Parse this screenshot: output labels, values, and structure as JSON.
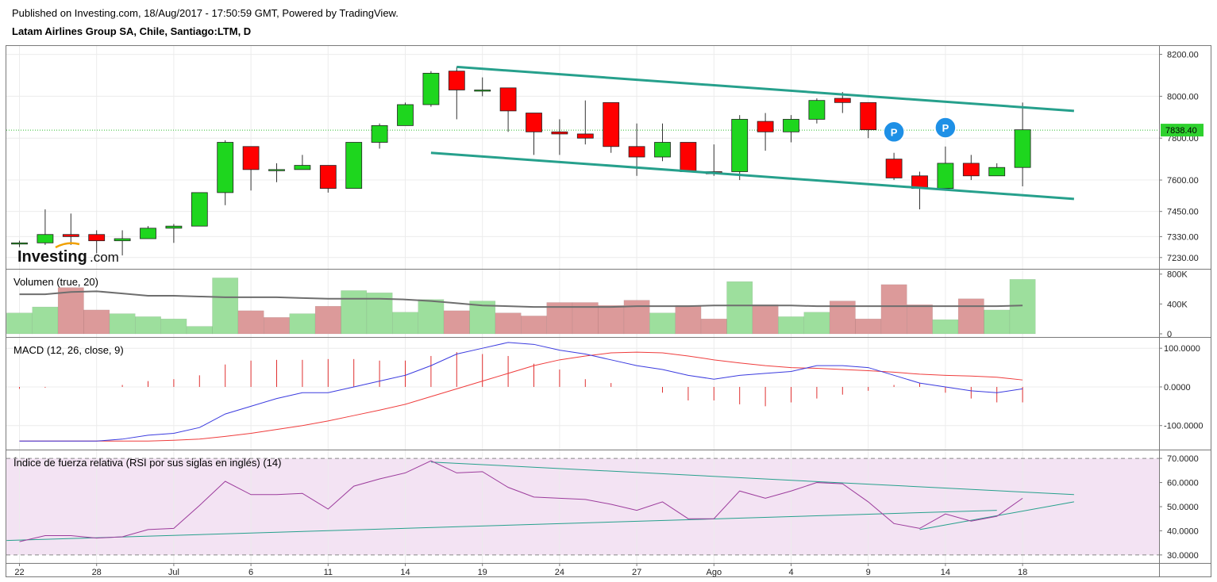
{
  "header": {
    "published": "Published on Investing.com, 18/Aug/2017 - 17:50:59 GMT, Powered by TradingView.",
    "symbol": "Latam Airlines Group SA, Chile, Santiago:LTM, D"
  },
  "logo": {
    "main": "Investing",
    "suffix": ".com"
  },
  "colors": {
    "up": "#1ed61e",
    "down": "#ff0000",
    "trend": "#26a08c",
    "vol_up": "#9ddf9d",
    "vol_down": "#dc9a9a",
    "vol_ma": "#6e6e6e",
    "macd": "#3b3bdf",
    "signal": "#ef3c3c",
    "hist": "#e03030",
    "rsi": "#9c3c9c",
    "rsi_band": "#f3e3f3",
    "last_bg": "#2ed12e"
  },
  "chart_data": [
    {
      "type": "candlestick",
      "title": "Latam Airlines Group SA, Chile, Santiago:LTM, D",
      "ylim": [
        7180,
        8240
      ],
      "y_ticks": [
        "8200.00",
        "8000.00",
        "7800.00",
        "7600.00",
        "7450.00",
        "7330.00",
        "7230.00"
      ],
      "last_price": 7838.4,
      "last_label": "7838.40",
      "x_tick_labels": [
        {
          "label": "22",
          "i": 0
        },
        {
          "label": "28",
          "i": 3
        },
        {
          "label": "Jul",
          "i": 6
        },
        {
          "label": "6",
          "i": 9
        },
        {
          "label": "11",
          "i": 12
        },
        {
          "label": "14",
          "i": 15
        },
        {
          "label": "19",
          "i": 18
        },
        {
          "label": "24",
          "i": 21
        },
        {
          "label": "27",
          "i": 24
        },
        {
          "label": "Ago",
          "i": 27
        },
        {
          "label": "4",
          "i": 30
        },
        {
          "label": "9",
          "i": 33
        },
        {
          "label": "14",
          "i": 36
        },
        {
          "label": "18",
          "i": 39
        }
      ],
      "candles": [
        {
          "o": 7300,
          "h": 7310,
          "l": 7280,
          "c": 7300
        },
        {
          "o": 7300,
          "h": 7460,
          "l": 7290,
          "c": 7340
        },
        {
          "o": 7340,
          "h": 7440,
          "l": 7290,
          "c": 7330
        },
        {
          "o": 7340,
          "h": 7360,
          "l": 7250,
          "c": 7310
        },
        {
          "o": 7310,
          "h": 7360,
          "l": 7240,
          "c": 7320
        },
        {
          "o": 7320,
          "h": 7380,
          "l": 7320,
          "c": 7370
        },
        {
          "o": 7370,
          "h": 7390,
          "l": 7300,
          "c": 7380
        },
        {
          "o": 7380,
          "h": 7540,
          "l": 7380,
          "c": 7540
        },
        {
          "o": 7540,
          "h": 7790,
          "l": 7480,
          "c": 7780
        },
        {
          "o": 7760,
          "h": 7760,
          "l": 7550,
          "c": 7650
        },
        {
          "o": 7650,
          "h": 7680,
          "l": 7590,
          "c": 7650
        },
        {
          "o": 7650,
          "h": 7720,
          "l": 7650,
          "c": 7670
        },
        {
          "o": 7670,
          "h": 7670,
          "l": 7540,
          "c": 7560
        },
        {
          "o": 7560,
          "h": 7780,
          "l": 7560,
          "c": 7780
        },
        {
          "o": 7780,
          "h": 7870,
          "l": 7750,
          "c": 7860
        },
        {
          "o": 7860,
          "h": 7970,
          "l": 7860,
          "c": 7960
        },
        {
          "o": 7960,
          "h": 8120,
          "l": 7950,
          "c": 8110
        },
        {
          "o": 8120,
          "h": 8140,
          "l": 7890,
          "c": 8030
        },
        {
          "o": 8030,
          "h": 8090,
          "l": 8000,
          "c": 8030
        },
        {
          "o": 8040,
          "h": 8040,
          "l": 7830,
          "c": 7930
        },
        {
          "o": 7920,
          "h": 7920,
          "l": 7720,
          "c": 7830
        },
        {
          "o": 7830,
          "h": 7890,
          "l": 7720,
          "c": 7820
        },
        {
          "o": 7820,
          "h": 7980,
          "l": 7770,
          "c": 7800
        },
        {
          "o": 7970,
          "h": 7970,
          "l": 7730,
          "c": 7760
        },
        {
          "o": 7760,
          "h": 7870,
          "l": 7620,
          "c": 7710
        },
        {
          "o": 7710,
          "h": 7870,
          "l": 7690,
          "c": 7780
        },
        {
          "o": 7780,
          "h": 7780,
          "l": 7640,
          "c": 7640
        },
        {
          "o": 7640,
          "h": 7770,
          "l": 7620,
          "c": 7630
        },
        {
          "o": 7640,
          "h": 7910,
          "l": 7600,
          "c": 7890
        },
        {
          "o": 7880,
          "h": 7920,
          "l": 7740,
          "c": 7830
        },
        {
          "o": 7830,
          "h": 7910,
          "l": 7780,
          "c": 7890
        },
        {
          "o": 7890,
          "h": 7990,
          "l": 7870,
          "c": 7980
        },
        {
          "o": 7990,
          "h": 8020,
          "l": 7920,
          "c": 7970
        },
        {
          "o": 7970,
          "h": 7970,
          "l": 7800,
          "c": 7840
        },
        {
          "o": 7700,
          "h": 7730,
          "l": 7600,
          "c": 7610
        },
        {
          "o": 7620,
          "h": 7640,
          "l": 7460,
          "c": 7560
        },
        {
          "o": 7560,
          "h": 7760,
          "l": 7560,
          "c": 7680
        },
        {
          "o": 7680,
          "h": 7720,
          "l": 7600,
          "c": 7620
        },
        {
          "o": 7620,
          "h": 7680,
          "l": 7620,
          "c": 7660
        },
        {
          "o": 7660,
          "h": 7970,
          "l": 7570,
          "c": 7840
        }
      ],
      "trendlines": [
        {
          "i1": 17,
          "v1": 8140,
          "i2": 41,
          "v2": 7930
        },
        {
          "i1": 16,
          "v1": 7730,
          "i2": 41,
          "v2": 7510
        }
      ],
      "markers": [
        {
          "label": "P",
          "i": 34,
          "v": 7830
        },
        {
          "label": "P",
          "i": 36,
          "v": 7850
        }
      ]
    },
    {
      "type": "bar",
      "title": "Volumen (true, 20)",
      "ylim": [
        0,
        850000
      ],
      "y_ticks": [
        "800K",
        "400K",
        "0"
      ],
      "values": [
        280000,
        360000,
        620000,
        320000,
        270000,
        230000,
        200000,
        100000,
        750000,
        310000,
        220000,
        270000,
        370000,
        580000,
        550000,
        290000,
        460000,
        310000,
        440000,
        280000,
        240000,
        420000,
        420000,
        380000,
        450000,
        280000,
        380000,
        200000,
        700000,
        390000,
        230000,
        290000,
        440000,
        200000,
        660000,
        390000,
        190000,
        470000,
        320000,
        730000
      ],
      "direction": [
        "up",
        "up",
        "down",
        "down",
        "up",
        "up",
        "up",
        "up",
        "up",
        "down",
        "down",
        "up",
        "down",
        "up",
        "up",
        "up",
        "up",
        "down",
        "up",
        "down",
        "down",
        "down",
        "down",
        "down",
        "down",
        "up",
        "down",
        "down",
        "up",
        "down",
        "up",
        "up",
        "down",
        "down",
        "down",
        "down",
        "up",
        "down",
        "up",
        "up"
      ],
      "ma": [
        530000,
        530000,
        560000,
        570000,
        540000,
        510000,
        510000,
        500000,
        490000,
        490000,
        490000,
        480000,
        470000,
        470000,
        470000,
        460000,
        440000,
        410000,
        380000,
        370000,
        360000,
        360000,
        360000,
        360000,
        370000,
        370000,
        370000,
        380000,
        380000,
        380000,
        380000,
        370000,
        370000,
        370000,
        370000,
        370000,
        370000,
        370000,
        370000,
        380000
      ]
    },
    {
      "type": "line",
      "title": "MACD (12, 26, close, 9)",
      "ylim": [
        -160,
        125
      ],
      "y_ticks": [
        "100.0000",
        "0.0000",
        "-100.0000"
      ],
      "series": [
        {
          "values": [
            -140,
            -140,
            -140,
            -140,
            -135,
            -125,
            -120,
            -105,
            -70,
            -50,
            -30,
            -15,
            -15,
            0,
            15,
            30,
            55,
            85,
            100,
            115,
            110,
            95,
            85,
            70,
            55,
            45,
            30,
            20,
            30,
            35,
            40,
            55,
            55,
            50,
            30,
            10,
            0,
            -10,
            -15,
            -5
          ]
        },
        {
          "values": [
            -140,
            -140,
            -140,
            -140,
            -140,
            -140,
            -138,
            -135,
            -128,
            -120,
            -110,
            -100,
            -88,
            -74,
            -60,
            -45,
            -25,
            -5,
            15,
            35,
            55,
            70,
            80,
            88,
            90,
            88,
            80,
            70,
            62,
            55,
            50,
            48,
            45,
            42,
            38,
            33,
            30,
            28,
            25,
            18
          ]
        }
      ],
      "histogram": [
        -5,
        -2,
        0,
        0,
        5,
        15,
        20,
        30,
        58,
        68,
        70,
        70,
        72,
        72,
        68,
        68,
        80,
        90,
        85,
        80,
        60,
        45,
        20,
        10,
        0,
        -15,
        -35,
        -35,
        -45,
        -50,
        -40,
        -30,
        -20,
        -10,
        5,
        10,
        -15,
        -30,
        -40,
        -40
      ]
    },
    {
      "type": "line",
      "title": "Índice de fuerza relativa (RSI por sus siglas en inglés) (14)",
      "ylim": [
        27,
        73
      ],
      "y_ticks": [
        "70.0000",
        "60.0000",
        "50.0000",
        "40.0000",
        "30.0000"
      ],
      "band": [
        30,
        70
      ],
      "series": [
        {
          "values": [
            35.5,
            38,
            38,
            37,
            37.5,
            40.5,
            41,
            50.5,
            60.5,
            55,
            55,
            55.5,
            49,
            58.5,
            61.5,
            64,
            69,
            64,
            64.5,
            58,
            54,
            53.5,
            53,
            51,
            48.5,
            52,
            45,
            45,
            56.5,
            53.5,
            56.5,
            60,
            59.5,
            52,
            43,
            41,
            47,
            44,
            46,
            53.5
          ]
        }
      ],
      "trendlines": [
        {
          "i1": 16,
          "v1": 68.5,
          "i2": 41,
          "v2": 55
        },
        {
          "i1": -0.5,
          "v1": 36,
          "i2": 38,
          "v2": 48.5
        },
        {
          "i1": 35,
          "v1": 40.5,
          "i2": 41,
          "v2": 52
        }
      ]
    }
  ]
}
